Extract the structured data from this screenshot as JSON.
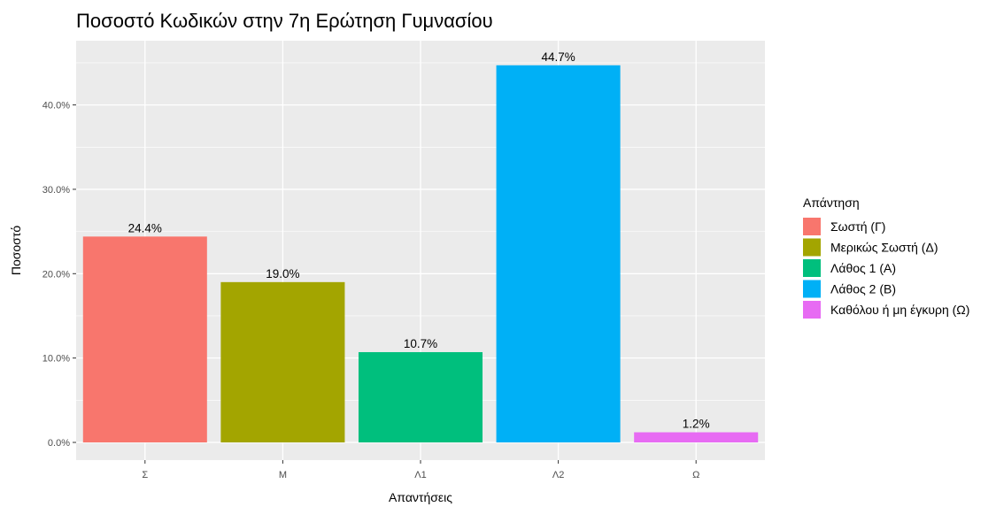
{
  "chart_data": {
    "type": "bar",
    "title": "Ποσοστό Κωδικών στην 7η Ερώτηση Γυμνασίου",
    "xlabel": "Απαντήσεις",
    "ylabel": "Ποσοστό",
    "categories": [
      "Σ",
      "Μ",
      "Λ1",
      "Λ2",
      "Ω"
    ],
    "values": [
      24.4,
      19.0,
      10.7,
      44.7,
      1.2
    ],
    "value_labels": [
      "24.4%",
      "19.0%",
      "10.7%",
      "44.7%",
      "1.2%"
    ],
    "colors": [
      "#F8766D",
      "#A3A500",
      "#00BF7D",
      "#00B0F6",
      "#E76BF3"
    ],
    "ylim": [
      0,
      47
    ],
    "y_ticks": [
      0,
      10,
      20,
      30,
      40
    ],
    "y_tick_labels": [
      "0.0%",
      "10.0%",
      "20.0%",
      "30.0%",
      "40.0%"
    ],
    "grid": true,
    "panel_background": "#EBEBEB",
    "grid_color": "#FFFFFF",
    "legend": {
      "title": "Απάντηση",
      "position": "right",
      "entries": [
        {
          "label": "Σωστή (Γ)",
          "color": "#F8766D"
        },
        {
          "label": "Μερικώς Σωστή (Δ)",
          "color": "#A3A500"
        },
        {
          "label": "Λάθος 1 (Α)",
          "color": "#00BF7D"
        },
        {
          "label": "Λάθος 2 (Β)",
          "color": "#00B0F6"
        },
        {
          "label": "Καθόλου ή μη έγκυρη (Ω)",
          "color": "#E76BF3"
        }
      ]
    }
  }
}
